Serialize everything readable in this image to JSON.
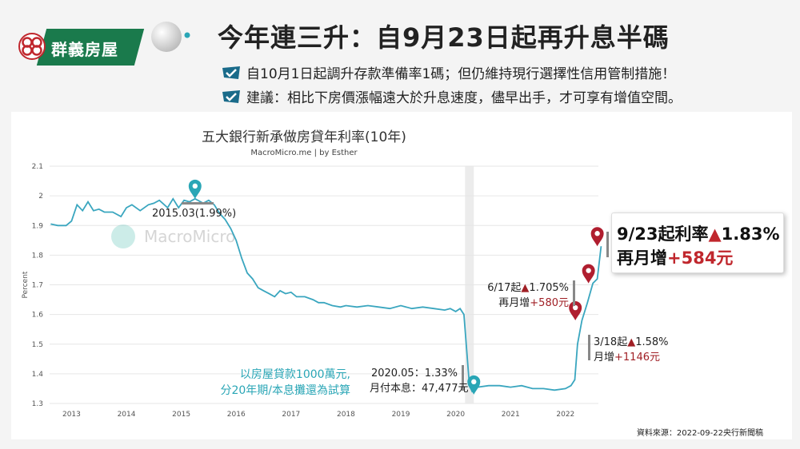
{
  "brand": {
    "name": "群義房屋",
    "color": "#1a7a4c"
  },
  "header": {
    "title": "今年連三升：自9月23日起再升息半碼",
    "bullets": [
      "自10月1日起調升存款準備率1碼；但仍維持現行選擇性信用管制措施！",
      "建議：相比下房價漲幅遠大於升息速度，儘早出手，才可享有增值空間。"
    ]
  },
  "chart_data": {
    "type": "line",
    "title": "五大銀行新承做房貸年利率(10年)",
    "subtitle": "MacroMicro.me | by Esther",
    "watermark": "MacroMicro",
    "ylabel": "Percent",
    "ylim": [
      1.3,
      2.1
    ],
    "yticks": [
      "1.3",
      "1.4",
      "1.5",
      "1.6",
      "1.7",
      "1.8",
      "1.9",
      "2",
      "2.1"
    ],
    "xticks": [
      "2013",
      "2014",
      "2015",
      "2016",
      "2017",
      "2018",
      "2019",
      "2020",
      "2021",
      "2022"
    ],
    "xlim": [
      2012.6,
      2022.6
    ],
    "grid": "horizontal",
    "line_color": "#3aa6bf",
    "shaded_period": [
      2020.17,
      2020.33
    ],
    "series": [
      {
        "x": [
          2012.62,
          2012.75,
          2012.9,
          2013.0,
          2013.1,
          2013.2,
          2013.3,
          2013.4,
          2013.5,
          2013.6,
          2013.75,
          2013.9,
          2014.0,
          2014.1,
          2014.25,
          2014.4,
          2014.5,
          2014.6,
          2014.75,
          2014.85,
          2014.95,
          2015.05,
          2015.15,
          2015.25,
          2015.4,
          2015.5,
          2015.6,
          2015.7,
          2015.8,
          2015.9,
          2016.0,
          2016.1,
          2016.2,
          2016.3,
          2016.4,
          2016.5,
          2016.6,
          2016.7,
          2016.8,
          2016.9,
          2017.0,
          2017.1,
          2017.25,
          2017.4,
          2017.5,
          2017.6,
          2017.75,
          2017.9,
          2018.0,
          2018.2,
          2018.4,
          2018.6,
          2018.8,
          2019.0,
          2019.2,
          2019.4,
          2019.6,
          2019.8,
          2019.9,
          2020.0,
          2020.08,
          2020.15,
          2020.25,
          2020.3,
          2020.4,
          2020.6,
          2020.8,
          2021.0,
          2021.2,
          2021.4,
          2021.6,
          2021.8,
          2022.0,
          2022.1,
          2022.17,
          2022.22,
          2022.3,
          2022.4,
          2022.5,
          2022.58,
          2022.65
        ],
        "values": [
          1.905,
          1.9,
          1.9,
          1.915,
          1.97,
          1.95,
          1.98,
          1.95,
          1.955,
          1.945,
          1.945,
          1.93,
          1.96,
          1.97,
          1.95,
          1.97,
          1.975,
          1.985,
          1.96,
          1.99,
          1.96,
          1.985,
          1.98,
          1.99,
          1.975,
          1.985,
          1.97,
          1.94,
          1.92,
          1.89,
          1.85,
          1.79,
          1.74,
          1.72,
          1.69,
          1.68,
          1.67,
          1.66,
          1.68,
          1.67,
          1.675,
          1.66,
          1.66,
          1.65,
          1.64,
          1.64,
          1.63,
          1.625,
          1.63,
          1.625,
          1.63,
          1.625,
          1.62,
          1.63,
          1.62,
          1.625,
          1.62,
          1.615,
          1.62,
          1.61,
          1.62,
          1.6,
          1.36,
          1.34,
          1.355,
          1.36,
          1.36,
          1.355,
          1.36,
          1.35,
          1.35,
          1.345,
          1.35,
          1.36,
          1.38,
          1.5,
          1.58,
          1.64,
          1.705,
          1.72,
          1.83
        ]
      }
    ],
    "markers": [
      {
        "x": 2015.25,
        "y": 1.99,
        "label": "2015.03(1.99%)",
        "color": "#2aa6b6"
      },
      {
        "x": 2020.33,
        "y": 1.33,
        "label1": "2020.05：1.33%",
        "label2": "月付本息：47,477元",
        "color": "#2aa6b6"
      },
      {
        "x": 2022.18,
        "y": 1.58,
        "label1_prefix": "3/18起",
        "label1_rate": "1.58%",
        "label2_prefix": "月增",
        "label2_amount": "+1146元",
        "color": "#b01e2f"
      },
      {
        "x": 2022.42,
        "y": 1.705,
        "label1_prefix": "6/17起",
        "label1_rate": "1.705%",
        "label2_prefix": "再月增",
        "label2_amount": "+580元",
        "color": "#b01e2f"
      },
      {
        "x": 2022.58,
        "y": 1.83,
        "color": "#b01e2f"
      }
    ],
    "note": [
      "以房屋貸款1000萬元,",
      "分20年期/本息攤還為試算"
    ]
  },
  "callout": {
    "line1_prefix": "9/23起利率",
    "line1_rate": "1.83%",
    "line2_prefix": "再月增",
    "line2_amount": "+584元"
  },
  "triangle": "▲",
  "source": "資料來源：2022-09-22央行新聞稿"
}
